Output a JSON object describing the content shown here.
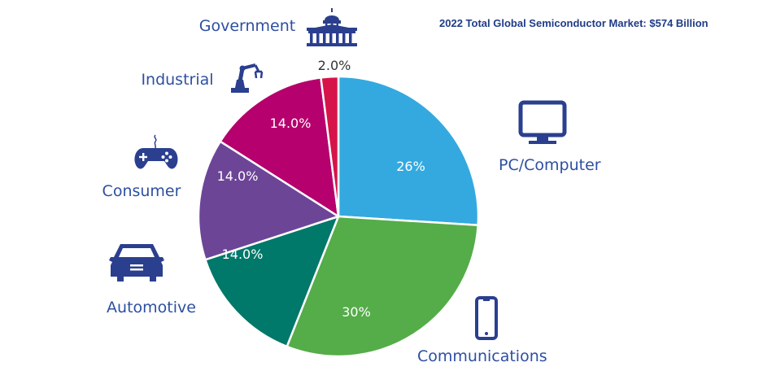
{
  "chart_data": {
    "type": "pie",
    "title": "2022 Total Global Semiconductor Market: $574 Billion",
    "slices": [
      {
        "label": "PC/Computer",
        "value": 26,
        "display": "26%",
        "color": "#33a9e0",
        "icon": "monitor-icon"
      },
      {
        "label": "Communications",
        "value": 30,
        "display": "30%",
        "color": "#54ad48",
        "icon": "smartphone-icon"
      },
      {
        "label": "Automotive",
        "value": 14,
        "display": "14.0%",
        "color": "#00786a",
        "icon": "car-icon"
      },
      {
        "label": "Consumer",
        "value": 14,
        "display": "14.0%",
        "color": "#6d4597",
        "icon": "gamepad-icon"
      },
      {
        "label": "Industrial",
        "value": 14,
        "display": "14.0%",
        "color": "#b5006d",
        "icon": "robot-arm-icon"
      },
      {
        "label": "Government",
        "value": 2,
        "display": "2.0%",
        "color": "#d6144a",
        "icon": "capitol-icon"
      }
    ]
  },
  "colors": {
    "category_label": "#2d4fa1",
    "icon": "#2b3f8f",
    "title": "#1f3c88"
  }
}
